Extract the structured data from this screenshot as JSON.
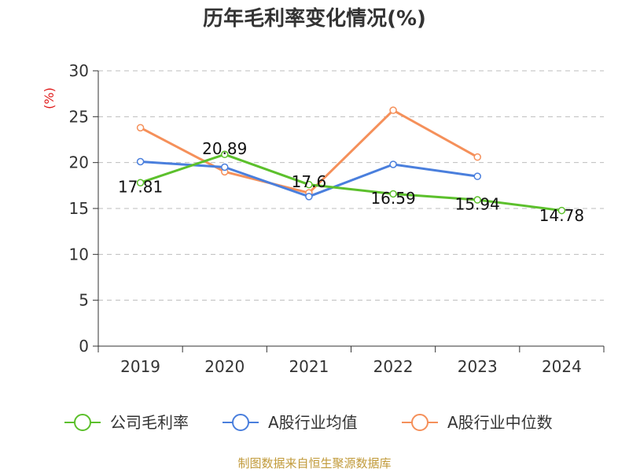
{
  "chart_data": {
    "type": "line",
    "title": "历年毛利率变化情况(%)",
    "unit_label": "(%)",
    "categories": [
      "2019",
      "2020",
      "2021",
      "2022",
      "2023",
      "2024"
    ],
    "ylim": [
      0,
      30
    ],
    "yticks": [
      0,
      5,
      10,
      15,
      20,
      25,
      30
    ],
    "grid": true,
    "legend_position": "bottom",
    "series": [
      {
        "name": "公司毛利率",
        "color": "#5cc02c",
        "values": [
          17.81,
          20.89,
          17.6,
          16.59,
          15.94,
          14.78
        ],
        "labels": [
          "17.81",
          "20.89",
          "17.6",
          "16.59",
          "15.94",
          "14.78"
        ]
      },
      {
        "name": "A股行业均值",
        "color": "#4a7fdd",
        "values": [
          20.1,
          19.5,
          16.3,
          19.8,
          18.5,
          null
        ]
      },
      {
        "name": "A股行业中位数",
        "color": "#f5905a",
        "values": [
          23.8,
          19.0,
          16.7,
          25.7,
          20.6,
          null
        ]
      }
    ],
    "source": "制图数据来自恒生聚源数据库"
  }
}
